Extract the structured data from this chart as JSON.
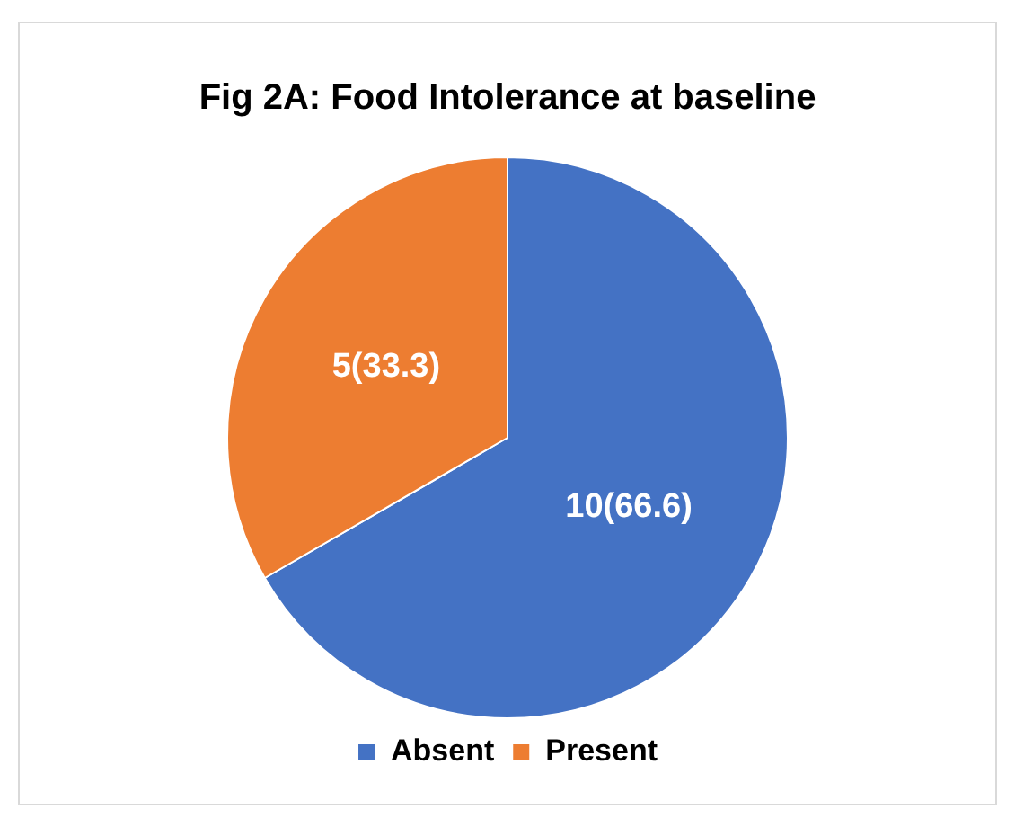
{
  "chart_data": {
    "type": "pie",
    "title": "Fig 2A: Food Intolerance at baseline",
    "categories": [
      "Absent",
      "Present"
    ],
    "values": [
      10,
      5
    ],
    "colors": [
      "#4472c4",
      "#ed7d31"
    ],
    "value_labels": [
      "10(66.6)",
      "5(33.3)"
    ],
    "legend": "bottom"
  }
}
